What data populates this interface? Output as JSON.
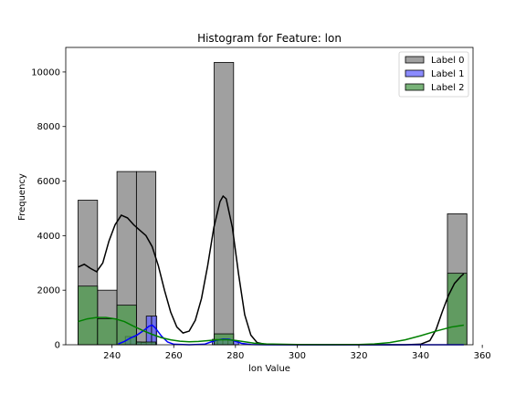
{
  "chart_data": {
    "type": "bar",
    "title": "Histogram for Feature: lon",
    "xlabel": "lon Value",
    "ylabel": "Frequency",
    "xlim": [
      225,
      357
    ],
    "ylim": [
      0,
      10900
    ],
    "xticks": [
      240,
      260,
      280,
      300,
      320,
      340,
      360
    ],
    "yticks": [
      0,
      2000,
      4000,
      6000,
      8000,
      10000
    ],
    "legend_position": "top-right",
    "series": [
      {
        "name": "Label 0",
        "color": "#808080",
        "bins": [
          {
            "x0": 229.0,
            "x1": 235.3,
            "value": 5300
          },
          {
            "x0": 235.3,
            "x1": 241.6,
            "value": 2000
          },
          {
            "x0": 241.6,
            "x1": 247.9,
            "value": 6350
          },
          {
            "x0": 247.9,
            "x1": 254.2,
            "value": 6350
          },
          {
            "x0": 273.1,
            "x1": 279.4,
            "value": 10350
          },
          {
            "x0": 348.7,
            "x1": 355.0,
            "value": 4800
          }
        ],
        "kde_color": "#000000",
        "kde": [
          [
            229,
            2850
          ],
          [
            231,
            2950
          ],
          [
            233,
            2800
          ],
          [
            235,
            2680
          ],
          [
            237,
            3000
          ],
          [
            239,
            3800
          ],
          [
            241,
            4400
          ],
          [
            243,
            4750
          ],
          [
            245,
            4650
          ],
          [
            247,
            4400
          ],
          [
            249,
            4200
          ],
          [
            251,
            4000
          ],
          [
            253,
            3600
          ],
          [
            255,
            2900
          ],
          [
            257,
            2000
          ],
          [
            259,
            1200
          ],
          [
            261,
            650
          ],
          [
            263,
            430
          ],
          [
            265,
            500
          ],
          [
            267,
            900
          ],
          [
            269,
            1700
          ],
          [
            271,
            2900
          ],
          [
            273,
            4300
          ],
          [
            275,
            5250
          ],
          [
            276,
            5450
          ],
          [
            277,
            5350
          ],
          [
            279,
            4300
          ],
          [
            281,
            2600
          ],
          [
            283,
            1100
          ],
          [
            285,
            350
          ],
          [
            287,
            80
          ],
          [
            290,
            10
          ],
          [
            300,
            0
          ],
          [
            320,
            0
          ],
          [
            335,
            0
          ],
          [
            340,
            20
          ],
          [
            343,
            150
          ],
          [
            345,
            550
          ],
          [
            347,
            1200
          ],
          [
            349,
            1800
          ],
          [
            351,
            2250
          ],
          [
            353,
            2500
          ],
          [
            354,
            2600
          ]
        ]
      },
      {
        "name": "Label 1",
        "color": "#6464ff",
        "bins": [
          {
            "x0": 244.3,
            "x1": 246.0,
            "value": 300
          },
          {
            "x0": 246.0,
            "x1": 247.7,
            "value": 280
          },
          {
            "x0": 247.7,
            "x1": 249.4,
            "value": 100
          },
          {
            "x0": 249.4,
            "x1": 251.1,
            "value": 80
          },
          {
            "x0": 251.1,
            "x1": 252.8,
            "value": 1050
          },
          {
            "x0": 252.8,
            "x1": 254.5,
            "value": 1050
          },
          {
            "x0": 272.5,
            "x1": 274.2,
            "value": 200
          },
          {
            "x0": 274.2,
            "x1": 275.9,
            "value": 190
          },
          {
            "x0": 275.9,
            "x1": 277.6,
            "value": 220
          },
          {
            "x0": 277.6,
            "x1": 279.3,
            "value": 180
          },
          {
            "x0": 279.3,
            "x1": 281.0,
            "value": 130
          }
        ],
        "kde_color": "#0000ff",
        "kde": [
          [
            242,
            30
          ],
          [
            244,
            120
          ],
          [
            246,
            250
          ],
          [
            248,
            350
          ],
          [
            250,
            500
          ],
          [
            252,
            680
          ],
          [
            253,
            720
          ],
          [
            254,
            620
          ],
          [
            256,
            320
          ],
          [
            258,
            100
          ],
          [
            260,
            20
          ],
          [
            265,
            0
          ],
          [
            270,
            20
          ],
          [
            272,
            100
          ],
          [
            274,
            170
          ],
          [
            276,
            210
          ],
          [
            278,
            200
          ],
          [
            280,
            130
          ],
          [
            282,
            50
          ],
          [
            285,
            10
          ],
          [
            290,
            0
          ],
          [
            320,
            0
          ],
          [
            354,
            0
          ]
        ]
      },
      {
        "name": "Label 2",
        "color": "#4c9a4c",
        "bins": [
          {
            "x0": 229.0,
            "x1": 235.3,
            "value": 2150
          },
          {
            "x0": 235.3,
            "x1": 241.6,
            "value": 950
          },
          {
            "x0": 241.6,
            "x1": 247.9,
            "value": 1450
          },
          {
            "x0": 247.9,
            "x1": 254.2,
            "value": 100
          },
          {
            "x0": 273.1,
            "x1": 279.4,
            "value": 400
          },
          {
            "x0": 348.7,
            "x1": 355.0,
            "value": 2620
          }
        ],
        "kde_color": "#008000",
        "kde": [
          [
            229,
            850
          ],
          [
            232,
            950
          ],
          [
            235,
            1000
          ],
          [
            238,
            1000
          ],
          [
            241,
            950
          ],
          [
            244,
            850
          ],
          [
            247,
            680
          ],
          [
            250,
            520
          ],
          [
            253,
            380
          ],
          [
            256,
            260
          ],
          [
            259,
            180
          ],
          [
            262,
            130
          ],
          [
            265,
            110
          ],
          [
            268,
            120
          ],
          [
            271,
            150
          ],
          [
            274,
            180
          ],
          [
            277,
            190
          ],
          [
            280,
            160
          ],
          [
            283,
            110
          ],
          [
            286,
            60
          ],
          [
            290,
            30
          ],
          [
            300,
            10
          ],
          [
            310,
            5
          ],
          [
            320,
            10
          ],
          [
            325,
            30
          ],
          [
            330,
            80
          ],
          [
            335,
            180
          ],
          [
            340,
            330
          ],
          [
            345,
            500
          ],
          [
            350,
            650
          ],
          [
            354,
            720
          ]
        ]
      }
    ]
  }
}
